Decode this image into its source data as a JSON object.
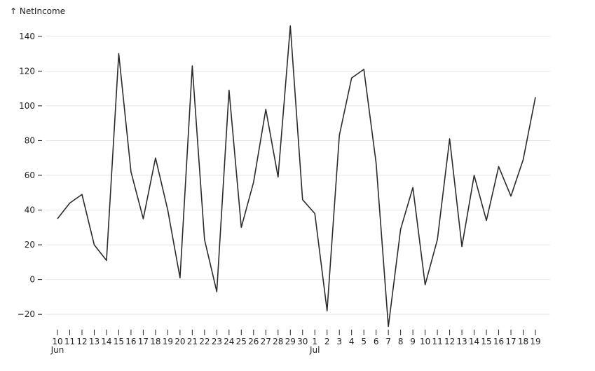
{
  "chart_data": {
    "type": "line",
    "ylabel": "↑ NetIncome",
    "xlabel": "",
    "ylim": [
      -28,
      148
    ],
    "y_ticks": [
      -20,
      0,
      20,
      40,
      60,
      80,
      100,
      120,
      140
    ],
    "grid": true,
    "line_color": "#2b2b2b",
    "x_tick_labels": [
      "10",
      "11",
      "12",
      "13",
      "14",
      "15",
      "16",
      "17",
      "18",
      "19",
      "20",
      "21",
      "22",
      "23",
      "24",
      "25",
      "26",
      "27",
      "28",
      "29",
      "30",
      "1",
      "2",
      "3",
      "4",
      "5",
      "6",
      "7",
      "8",
      "9",
      "10",
      "11",
      "12",
      "13",
      "14",
      "15",
      "16",
      "17",
      "18",
      "19"
    ],
    "month_labels": [
      {
        "index": 0,
        "label": "Jun"
      },
      {
        "index": 21,
        "label": "Jul"
      }
    ],
    "x": [
      "2023-06-10",
      "2023-06-11",
      "2023-06-12",
      "2023-06-13",
      "2023-06-14",
      "2023-06-15",
      "2023-06-16",
      "2023-06-17",
      "2023-06-18",
      "2023-06-19",
      "2023-06-20",
      "2023-06-21",
      "2023-06-22",
      "2023-06-23",
      "2023-06-24",
      "2023-06-25",
      "2023-06-26",
      "2023-06-27",
      "2023-06-28",
      "2023-06-29",
      "2023-06-30",
      "2023-07-01",
      "2023-07-02",
      "2023-07-03",
      "2023-07-04",
      "2023-07-05",
      "2023-07-06",
      "2023-07-07",
      "2023-07-08",
      "2023-07-09",
      "2023-07-10",
      "2023-07-11",
      "2023-07-12",
      "2023-07-13",
      "2023-07-14",
      "2023-07-15",
      "2023-07-16",
      "2023-07-17",
      "2023-07-18",
      "2023-07-19"
    ],
    "series": [
      {
        "values": [
          35,
          44,
          49,
          20,
          11,
          130,
          62,
          35,
          70,
          40,
          1,
          123,
          23,
          -7,
          109,
          30,
          56,
          98,
          59,
          146,
          46,
          38,
          -18,
          83,
          116,
          121,
          67,
          -27,
          29,
          53,
          -3,
          23,
          81,
          19,
          60,
          34,
          65,
          48,
          69,
          105
        ]
      }
    ]
  }
}
